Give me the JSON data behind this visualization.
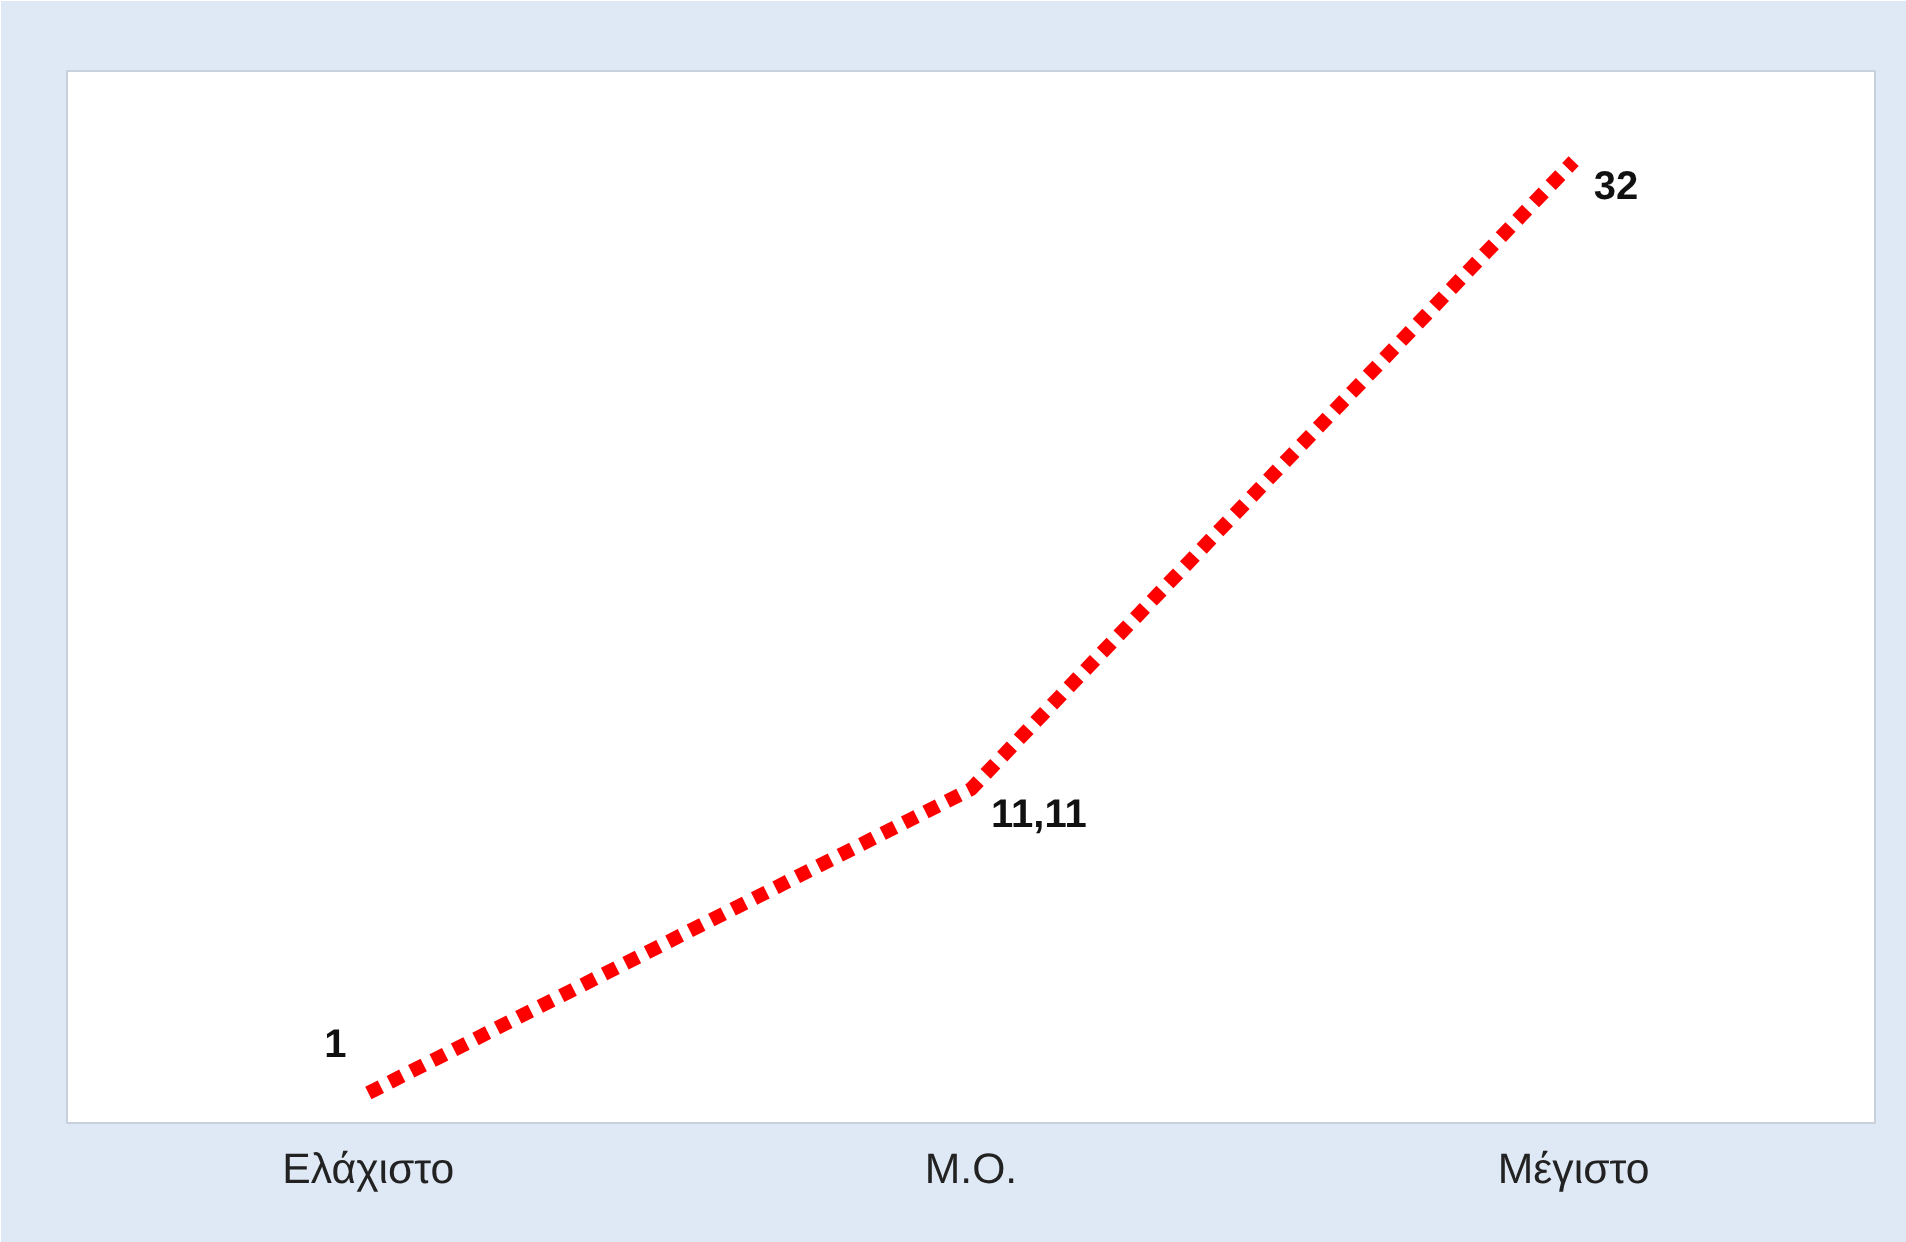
{
  "chart_data": {
    "type": "line",
    "categories": [
      "Ελάχιστο",
      "Μ.Ο.",
      "Μέγιστο"
    ],
    "series": [
      {
        "color": "#ff0000",
        "values": [
          1,
          11.11,
          32
        ],
        "value_labels": [
          "1",
          "11,11",
          "32"
        ]
      }
    ],
    "ylim": [
      0,
      35
    ],
    "tick_labels": "x",
    "grid": false,
    "line_style": "dotted",
    "marker": "none"
  }
}
